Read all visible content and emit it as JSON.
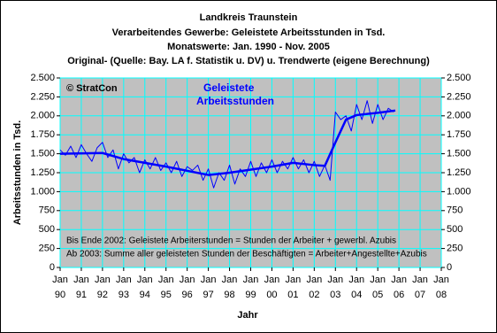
{
  "chart_data": {
    "type": "line",
    "title": [
      "Landkreis Traunstein",
      "Verarbeitendes Gewerbe: Geleistete Arbeitsstunden in Tsd.",
      "Monatswerte: Jan. 1990 - Nov. 2005",
      "Original- (Quelle: Bay. LA f. Statistik u. DV) u. Trendwerte (eigene Berechnung)"
    ],
    "annotations": [
      "© StratCon",
      "Geleistete",
      "Arbeitsstunden"
    ],
    "notes": [
      "Bis Ende 2002: Geleistete Arbeiterstunden = Stunden der Arbeiter + gewerbl. Azubis",
      "Ab 2003: Summe aller geleisteten Stunden der Beschäftigten = Arbeiter+Angestellte+Azubis"
    ],
    "y_label": "Arbeitsstunden in Tsd.",
    "x_label": "Jahr",
    "xlim": [
      1990,
      2008
    ],
    "xticks": [
      {
        "value": 1990,
        "label": [
          "Jan",
          "90"
        ]
      },
      {
        "value": 1991,
        "label": [
          "Jan",
          "91"
        ]
      },
      {
        "value": 1992,
        "label": [
          "Jan",
          "92"
        ]
      },
      {
        "value": 1993,
        "label": [
          "Jan",
          "93"
        ]
      },
      {
        "value": 1994,
        "label": [
          "Jan",
          "94"
        ]
      },
      {
        "value": 1995,
        "label": [
          "Jan",
          "95"
        ]
      },
      {
        "value": 1996,
        "label": [
          "Jan",
          "96"
        ]
      },
      {
        "value": 1997,
        "label": [
          "Jan",
          "97"
        ]
      },
      {
        "value": 1998,
        "label": [
          "Jan",
          "98"
        ]
      },
      {
        "value": 1999,
        "label": [
          "Jan",
          "99"
        ]
      },
      {
        "value": 2000,
        "label": [
          "Jan",
          "00"
        ]
      },
      {
        "value": 2001,
        "label": [
          "Jan",
          "01"
        ]
      },
      {
        "value": 2002,
        "label": [
          "Jan",
          "02"
        ]
      },
      {
        "value": 2003,
        "label": [
          "Jan",
          "03"
        ]
      },
      {
        "value": 2004,
        "label": [
          "Jan",
          "04"
        ]
      },
      {
        "value": 2005,
        "label": [
          "Jan",
          "05"
        ]
      },
      {
        "value": 2006,
        "label": [
          "Jan",
          "06"
        ]
      },
      {
        "value": 2007,
        "label": [
          "Jan",
          "07"
        ]
      },
      {
        "value": 2008,
        "label": [
          "Jan",
          "08"
        ]
      }
    ],
    "ylim": [
      0,
      2500
    ],
    "yticks": [
      0,
      {
        "value": 250,
        "label": "250"
      },
      {
        "value": 500,
        "label": "500"
      },
      {
        "value": 750,
        "label": "750"
      },
      {
        "value": 1000,
        "label": "1.000"
      },
      {
        "value": 1250,
        "label": "1.250"
      },
      {
        "value": 1500,
        "label": "1.500"
      },
      {
        "value": 1750,
        "label": "1.750"
      },
      {
        "value": 2000,
        "label": "2.000"
      },
      {
        "value": 2250,
        "label": "2.250"
      },
      {
        "value": 2500,
        "label": "2.500"
      }
    ],
    "grid": true,
    "series": [
      {
        "color": "#0000ff",
        "width": 1,
        "x": [
          1990,
          1990.25,
          1990.5,
          1990.75,
          1991,
          1991.25,
          1991.5,
          1991.75,
          1992,
          1992.25,
          1992.5,
          1992.75,
          1993,
          1993.25,
          1993.5,
          1993.75,
          1994,
          1994.25,
          1994.5,
          1994.75,
          1995,
          1995.25,
          1995.5,
          1995.75,
          1996,
          1996.25,
          1996.5,
          1996.75,
          1997,
          1997.25,
          1997.5,
          1997.75,
          1998,
          1998.25,
          1998.5,
          1998.75,
          1999,
          1999.25,
          1999.5,
          1999.75,
          2000,
          2000.25,
          2000.5,
          2000.75,
          2001,
          2001.25,
          2001.5,
          2001.75,
          2002,
          2002.25,
          2002.5,
          2002.75,
          2003,
          2003.25,
          2003.5,
          2003.75,
          2004,
          2004.25,
          2004.5,
          2004.75,
          2005,
          2005.25,
          2005.5,
          2005.75
        ],
        "values": [
          1550,
          1480,
          1600,
          1450,
          1620,
          1500,
          1400,
          1580,
          1650,
          1450,
          1550,
          1300,
          1500,
          1380,
          1450,
          1250,
          1420,
          1300,
          1450,
          1280,
          1380,
          1250,
          1400,
          1200,
          1330,
          1280,
          1350,
          1150,
          1300,
          1050,
          1250,
          1150,
          1350,
          1100,
          1300,
          1200,
          1400,
          1200,
          1380,
          1250,
          1420,
          1250,
          1400,
          1300,
          1450,
          1300,
          1420,
          1250,
          1400,
          1200,
          1350,
          1150,
          2050,
          1950,
          2000,
          1800,
          2150,
          1950,
          2200,
          1900,
          2150,
          1950,
          2100,
          2050
        ]
      },
      {
        "color": "#0000ff",
        "width": 2.5,
        "x": [
          1990,
          1992,
          1993,
          1995,
          1997,
          1998,
          2000,
          2001,
          2002,
          2002.5,
          2003,
          2003.5,
          2004,
          2005,
          2005.83
        ],
        "values": [
          1500,
          1510,
          1430,
          1330,
          1220,
          1250,
          1330,
          1380,
          1350,
          1340,
          1650,
          1950,
          2010,
          2040,
          2070
        ]
      }
    ]
  }
}
